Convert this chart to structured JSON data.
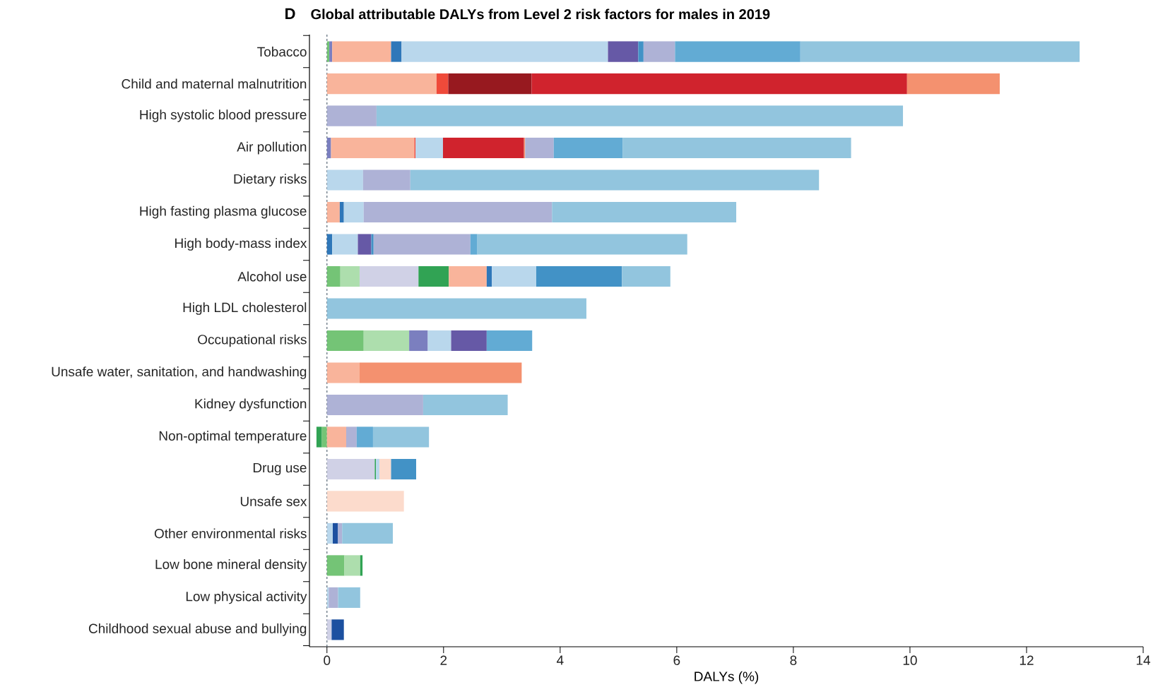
{
  "chart_data": {
    "type": "bar",
    "orientation": "horizontal",
    "stacked": true,
    "title": "Global attributable DALYs from Level 2 risk factors for males in 2019",
    "annotations": [
      "D"
    ],
    "xlabel": "DALYs (%)",
    "categories": [
      "Tobacco",
      "Child and maternal malnutrition",
      "High systolic blood pressure",
      "Air pollution",
      "Dietary risks",
      "High fasting plasma glucose",
      "High body-mass index",
      "Alcohol use",
      "High LDL cholesterol",
      "Occupational risks",
      "Unsafe water, sanitation, and handwashing",
      "Kidney dysfunction",
      "Non-optimal temperature",
      "Drug use",
      "Unsafe sex",
      "Other environmental risks",
      "Low bone mineral density",
      "Low physical activity",
      "Childhood sexual abuse and bullying"
    ],
    "xlim": [
      -0.3,
      14
    ],
    "xticks": [
      0,
      2,
      4,
      6,
      8,
      10,
      12,
      14
    ],
    "ref_lines": [
      {
        "axis": "x",
        "value": 0,
        "color": "#5a6a78",
        "line_style": "dashed"
      }
    ],
    "series": [
      {
        "color": "#74c476",
        "values": [
          0.04,
          null,
          null,
          null,
          null,
          null,
          null,
          0.23,
          null,
          0.63,
          null,
          null,
          -0.09,
          null,
          null,
          null,
          0.3,
          null,
          null
        ]
      },
      {
        "color": "#addead",
        "values": [
          null,
          null,
          null,
          null,
          null,
          null,
          null,
          0.33,
          null,
          0.78,
          null,
          null,
          null,
          null,
          null,
          null,
          0.27,
          null,
          null
        ]
      },
      {
        "color": "#d0d1e6",
        "values": [
          null,
          null,
          null,
          null,
          null,
          null,
          null,
          1.01,
          null,
          null,
          null,
          null,
          null,
          0.82,
          null,
          null,
          null,
          null,
          0.08
        ]
      },
      {
        "color": "#31a354",
        "values": [
          null,
          null,
          null,
          null,
          null,
          null,
          null,
          0.52,
          null,
          null,
          null,
          null,
          -0.09,
          0.02,
          null,
          null,
          0.04,
          null,
          null
        ]
      },
      {
        "color": "#7b7fbf",
        "values": [
          0.05,
          null,
          null,
          0.07,
          null,
          null,
          null,
          null,
          null,
          0.32,
          null,
          null,
          null,
          null,
          null,
          null,
          null,
          null,
          null
        ]
      },
      {
        "color": "#f9b49b",
        "values": [
          1.01,
          1.88,
          null,
          1.43,
          null,
          0.22,
          null,
          0.65,
          null,
          null,
          0.56,
          null,
          0.33,
          null,
          null,
          null,
          null,
          null,
          null
        ]
      },
      {
        "color": "#ef4a3a",
        "values": [
          null,
          0.2,
          null,
          0.02,
          null,
          null,
          null,
          null,
          null,
          null,
          null,
          null,
          null,
          null,
          null,
          null,
          null,
          null,
          null
        ]
      },
      {
        "color": "#2f77b9",
        "values": [
          0.18,
          null,
          null,
          null,
          null,
          0.07,
          0.09,
          0.09,
          null,
          null,
          null,
          null,
          null,
          null,
          null,
          null,
          null,
          null,
          null
        ]
      },
      {
        "color": "#b9d7ec",
        "values": [
          3.54,
          null,
          null,
          0.47,
          0.62,
          0.34,
          0.44,
          0.76,
          null,
          0.4,
          null,
          null,
          null,
          0.06,
          null,
          0.1,
          null,
          0.03,
          null
        ]
      },
      {
        "color": "#fcdbcc",
        "values": [
          null,
          null,
          null,
          null,
          null,
          null,
          null,
          null,
          null,
          null,
          null,
          null,
          null,
          0.2,
          1.32,
          null,
          null,
          null,
          null
        ]
      },
      {
        "color": "#1c50a0",
        "values": [
          null,
          null,
          null,
          null,
          null,
          null,
          null,
          null,
          null,
          null,
          null,
          null,
          null,
          null,
          null,
          0.09,
          null,
          null,
          0.21
        ]
      },
      {
        "color": "#97191f",
        "values": [
          null,
          1.43,
          null,
          null,
          null,
          null,
          null,
          null,
          null,
          null,
          null,
          null,
          null,
          null,
          null,
          null,
          null,
          null,
          null
        ]
      },
      {
        "color": "#d0232d",
        "values": [
          null,
          6.44,
          null,
          1.39,
          null,
          null,
          null,
          null,
          null,
          null,
          null,
          null,
          null,
          null,
          null,
          null,
          null,
          null,
          null
        ]
      },
      {
        "color": "#f4916f",
        "values": [
          null,
          1.59,
          null,
          0.02,
          null,
          null,
          null,
          null,
          null,
          null,
          2.78,
          null,
          null,
          null,
          null,
          null,
          null,
          null,
          null
        ]
      },
      {
        "color": "#6659a6",
        "values": [
          0.52,
          null,
          null,
          null,
          null,
          null,
          0.23,
          null,
          null,
          0.61,
          null,
          null,
          null,
          null,
          null,
          null,
          null,
          null,
          null
        ]
      },
      {
        "color": "#4292c6",
        "values": [
          0.09,
          null,
          null,
          null,
          null,
          null,
          0.04,
          1.47,
          null,
          null,
          null,
          null,
          null,
          0.43,
          null,
          null,
          null,
          null,
          null
        ]
      },
      {
        "color": "#aeb2d6",
        "values": [
          0.54,
          null,
          0.85,
          0.49,
          0.81,
          3.23,
          1.66,
          null,
          null,
          null,
          null,
          1.65,
          0.18,
          null,
          null,
          0.07,
          null,
          0.16,
          null
        ]
      },
      {
        "color": "#62abd4",
        "values": [
          2.15,
          null,
          null,
          1.18,
          null,
          null,
          0.12,
          null,
          null,
          0.78,
          null,
          null,
          0.28,
          null,
          null,
          null,
          null,
          null,
          null
        ]
      },
      {
        "color": "#92c5de",
        "values": [
          4.79,
          null,
          9.03,
          3.92,
          7.01,
          3.16,
          3.6,
          0.83,
          4.45,
          null,
          null,
          1.45,
          0.96,
          null,
          null,
          0.87,
          null,
          0.38,
          null
        ]
      }
    ]
  }
}
